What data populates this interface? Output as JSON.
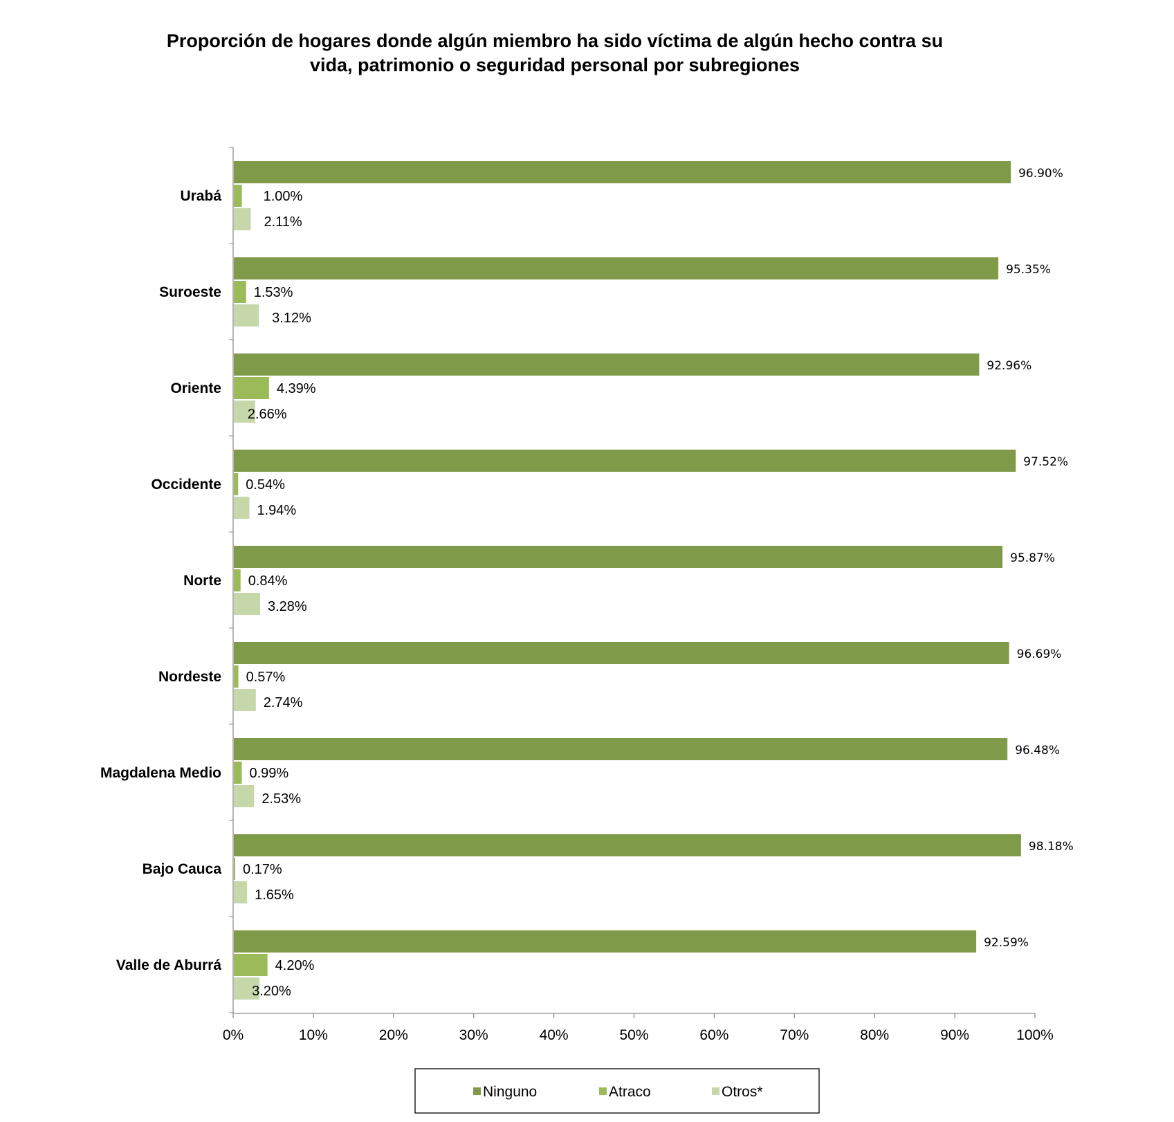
{
  "chart_data": {
    "type": "bar",
    "orientation": "horizontal",
    "title": "Proporción de hogares donde algún miembro ha sido víctima de algún hecho contra su vida, patrimonio o seguridad personal por subregiones",
    "title_lines": [
      "Proporción de hogares donde algún miembro ha sido víctima de algún hecho contra su",
      "vida, patrimonio o seguridad personal por subregiones"
    ],
    "categories": [
      "Urabá",
      "Suroeste",
      "Oriente",
      "Occidente",
      "Norte",
      "Nordeste",
      "Magdalena Medio",
      "Bajo Cauca",
      "Valle de Aburrá"
    ],
    "series": [
      {
        "name": "Ninguno",
        "color": "#7f9a48",
        "values": [
          96.9,
          95.35,
          92.96,
          97.52,
          95.87,
          96.69,
          96.48,
          98.18,
          92.59
        ],
        "labels": [
          "96.90%",
          "95.35%",
          "92.96%",
          "97.52%",
          "95.87%",
          "96.69%",
          "96.48%",
          "98.18%",
          "92.59%"
        ]
      },
      {
        "name": "Atraco",
        "color": "#9bbb59",
        "values": [
          1.0,
          1.53,
          4.39,
          0.54,
          0.84,
          0.57,
          0.99,
          0.17,
          4.2
        ],
        "labels": [
          "1.00%",
          "1.53%",
          "4.39%",
          "0.54%",
          "0.84%",
          "0.57%",
          "0.99%",
          "0.17%",
          "4.20%"
        ]
      },
      {
        "name": "Otros*",
        "color": "#c6d7a9",
        "values": [
          2.11,
          3.12,
          2.66,
          1.94,
          3.28,
          2.74,
          2.53,
          1.65,
          3.2
        ],
        "labels": [
          "2.11%",
          "3.12%",
          "2.66%",
          "1.94%",
          "3.28%",
          "2.74%",
          "2.53%",
          "1.65%",
          "3.20%"
        ]
      }
    ],
    "x_ticks": [
      "0%",
      "10%",
      "20%",
      "30%",
      "40%",
      "50%",
      "60%",
      "70%",
      "80%",
      "90%",
      "100%"
    ],
    "xlim": [
      0,
      100
    ],
    "xlabel": "",
    "ylabel": "",
    "grid": false,
    "legend_position": "bottom"
  }
}
